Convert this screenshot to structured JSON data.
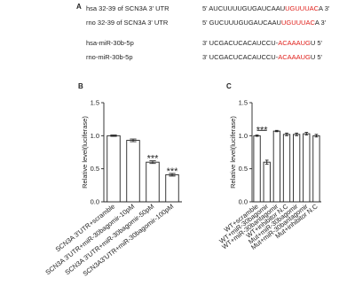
{
  "panel_a": {
    "label": "A",
    "rows": [
      {
        "name": "hsa 32-39 of SCN3A 3' UTR",
        "seq": [
          "5' AUCUUUUGUGAUCAAU",
          "UGUUUAC",
          "A 3'"
        ]
      },
      {
        "name": "rno 32-39 of SCN3A 3' UTR",
        "seq": [
          "5' GUCUUUGUGAUCAAU",
          "UGUUUAC",
          "A 3'"
        ]
      },
      {
        "name": "hsa-miR-30b-5p",
        "seq": [
          "3' UCGACUCACAUCCU-",
          "ACAAAUG",
          "U 5'"
        ]
      },
      {
        "name": "rno-miR-30b-5p",
        "seq": [
          "3' UCGACUCACAUCCU-",
          "ACAAAUG",
          "U 5'"
        ]
      }
    ]
  },
  "chart_data": [
    {
      "type": "bar",
      "panel_label": "B",
      "y_label": "Relative level(luciferase)",
      "categories": [
        "SCN3A 3'UTR+scramble",
        "SCN3A 3'UTR+miR-30bagomir-10pM",
        "SCN3A 3'UTR+miR-30bagomir-50pM",
        "SCN3A3'UTR+miR-30bagomir-100pM"
      ],
      "values": [
        1.0,
        0.93,
        0.6,
        0.41
      ],
      "errors": [
        0.01,
        0.02,
        0.02,
        0.02
      ],
      "color": "#ffffff",
      "ylim": [
        0,
        1.5
      ],
      "yticks": [
        {
          "value": 0,
          "label": "0.0"
        },
        {
          "value": 0.5,
          "label": "0.5"
        },
        {
          "value": 1,
          "label": "1.0"
        },
        {
          "value": 1.5,
          "label": "1.5"
        }
      ],
      "annotations": [
        "***",
        "***"
      ]
    },
    {
      "type": "bar",
      "panel_label": "C",
      "y_label": "Relative level(luciferase)",
      "categories": [
        "WT+scramble",
        "WT+miR-30bagomir",
        "WT+miR-30bantagomir",
        "WT+inhibitor N.C",
        "Mut+miR-30bagomir",
        "Mut+miR-30bantagomir",
        "Mut+inhibitor N.C"
      ],
      "values": [
        1.0,
        0.6,
        1.07,
        1.02,
        1.02,
        1.03,
        1.0
      ],
      "errors": [
        0.01,
        0.03,
        0.01,
        0.02,
        0.02,
        0.02,
        0.02
      ],
      "color": "#ffffff",
      "ylim": [
        0,
        1.5
      ],
      "yticks": [
        {
          "value": 0,
          "label": "0.0"
        },
        {
          "value": 0.5,
          "label": "0.5"
        },
        {
          "value": 1,
          "label": "1.0"
        },
        {
          "value": 1.5,
          "label": "1.5"
        }
      ],
      "annotations": [
        "***"
      ]
    }
  ]
}
